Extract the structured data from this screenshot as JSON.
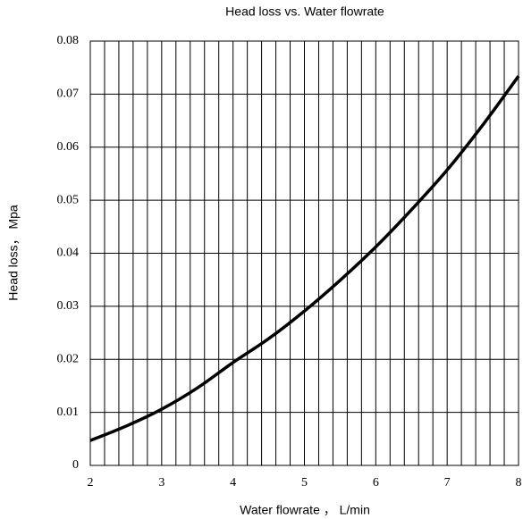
{
  "chart_data": {
    "type": "line",
    "title": "Head loss vs. Water flowrate",
    "x_label": "Water flowrate ， L/min",
    "y_label": "Head loss， Mpa",
    "x": [
      2,
      2.5,
      3,
      3.5,
      4,
      4.5,
      5,
      5.5,
      6,
      6.5,
      7,
      7.5,
      8
    ],
    "values": [
      0.0047,
      0.0074,
      0.0106,
      0.0146,
      0.0194,
      0.0239,
      0.0291,
      0.0349,
      0.0412,
      0.0482,
      0.0557,
      0.0642,
      0.0734
    ],
    "color": "#000000",
    "xlim": [
      2,
      8
    ],
    "ylim": [
      0,
      0.08
    ],
    "xticks": [
      2,
      3,
      4,
      5,
      6,
      7,
      8
    ],
    "yticks": [
      0,
      0.01,
      0.02,
      0.03,
      0.04,
      0.05,
      0.06,
      0.07,
      0.08
    ],
    "xminorticks": [
      2.2,
      2.4,
      2.6,
      2.8,
      3.2,
      3.4,
      3.6,
      3.8,
      4.2,
      4.4,
      4.6,
      4.8,
      5.2,
      5.4,
      5.6,
      5.8,
      6.2,
      6.4,
      6.6,
      6.8,
      7.2,
      7.4,
      7.6,
      7.8
    ],
    "grid": true
  }
}
